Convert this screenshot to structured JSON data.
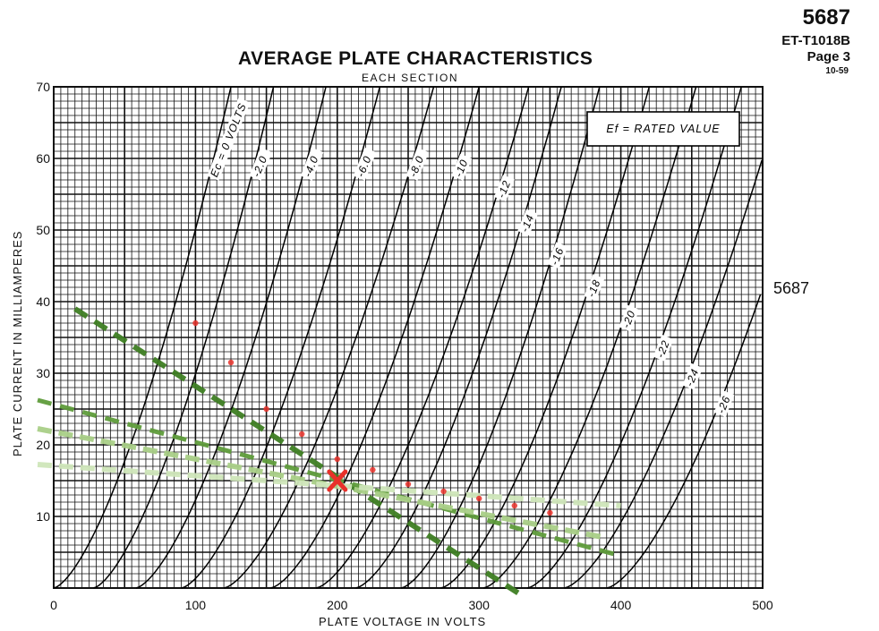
{
  "header": {
    "model": "5687",
    "doc_code": "ET-T1018B",
    "page": "Page 3",
    "date": "10-59"
  },
  "side_label": "5687",
  "chart_data": {
    "type": "line",
    "title": "AVERAGE PLATE CHARACTERISTICS",
    "subtitle": "EACH SECTION",
    "xlabel": "PLATE VOLTAGE IN VOLTS",
    "ylabel": "PLATE CURRENT IN MILLIAMPERES",
    "xlim": [
      0,
      500
    ],
    "ylim": [
      0,
      70
    ],
    "x_ticks": [
      0,
      100,
      200,
      300,
      400,
      500
    ],
    "y_ticks": [
      10,
      20,
      30,
      40,
      50,
      60,
      70
    ],
    "grid": true,
    "annotation_box": "Ef = RATED VALUE",
    "curve_labels": [
      "Ec = 0 VOLTS",
      "-2.0",
      "-4.0",
      "-6.0",
      "-8.0",
      "-10",
      "-12",
      "-14",
      "-16",
      "-18",
      "-20",
      "-22",
      "-24",
      "-26"
    ],
    "grid_bias_curves": [
      {
        "bias": 0,
        "x0": 0,
        "x70": 125
      },
      {
        "bias": -2.0,
        "x0": 28,
        "x70": 155
      },
      {
        "bias": -4.0,
        "x0": 58,
        "x70": 192
      },
      {
        "bias": -6.0,
        "x0": 90,
        "x70": 230
      },
      {
        "bias": -8.0,
        "x0": 120,
        "x70": 268
      },
      {
        "bias": -10,
        "x0": 153,
        "x70": 300
      },
      {
        "bias": -12,
        "x0": 185,
        "x70": 335
      },
      {
        "bias": -14,
        "x0": 213,
        "x70": 358
      },
      {
        "bias": -16,
        "x0": 245,
        "x70": 385
      },
      {
        "bias": -18,
        "x0": 273,
        "x70": 420
      },
      {
        "bias": -20,
        "x0": 303,
        "x70": 453
      },
      {
        "bias": -22,
        "x0": 334,
        "x70": 485
      },
      {
        "bias": -24,
        "x0": 360,
        "x70": 515
      },
      {
        "bias": -26,
        "x0": 390,
        "x70": 545
      }
    ],
    "load_lines": [
      {
        "style": "dark-green-dashed",
        "x": [
          15,
          330
        ],
        "y": [
          39,
          -1
        ]
      },
      {
        "style": "medium-green-dashed",
        "x": [
          0,
          400
        ],
        "y": [
          26.5,
          4.5
        ]
      },
      {
        "style": "light-green-dashed",
        "x": [
          0,
          390
        ],
        "y": [
          22.5,
          7
        ]
      },
      {
        "style": "pale-green-dashed",
        "x": [
          0,
          400
        ],
        "y": [
          17.5,
          11.5
        ]
      }
    ],
    "operating_point": {
      "x": 200,
      "y": 15,
      "marker": "X",
      "color": "#e8312a"
    },
    "red_points": [
      {
        "x": 100,
        "y": 37
      },
      {
        "x": 125,
        "y": 31.5
      },
      {
        "x": 150,
        "y": 25
      },
      {
        "x": 175,
        "y": 21.5
      },
      {
        "x": 200,
        "y": 18
      },
      {
        "x": 225,
        "y": 16.5
      },
      {
        "x": 250,
        "y": 14.5
      },
      {
        "x": 275,
        "y": 13.5
      },
      {
        "x": 300,
        "y": 12.5
      },
      {
        "x": 325,
        "y": 11.5
      },
      {
        "x": 350,
        "y": 10.5
      }
    ],
    "colors": {
      "grid": "#111111",
      "curve": "#000000",
      "load_dark": "#3f7f23",
      "load_medium": "#5f9c3c",
      "load_light": "#a9cf87",
      "load_pale": "#cfe6ba",
      "marker": "#e8312a"
    }
  }
}
